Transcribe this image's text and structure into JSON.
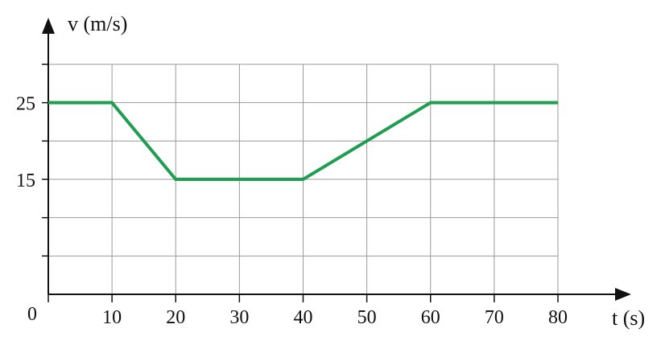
{
  "chart_data": {
    "type": "line",
    "title": "",
    "xlabel": "t (s)",
    "ylabel": "v (m/s)",
    "xlim": [
      0,
      80
    ],
    "ylim": [
      0,
      30
    ],
    "x_ticks": [
      10,
      20,
      30,
      40,
      50,
      60,
      70,
      80
    ],
    "y_ticks_labeled": [
      15,
      25
    ],
    "origin_label": "0",
    "grid": true,
    "x_grid_step": 10,
    "y_grid_step": 5,
    "series": [
      {
        "color": "#1f9e4f",
        "x": [
          0,
          10,
          20,
          40,
          60,
          80
        ],
        "y": [
          25,
          25,
          15,
          15,
          25,
          25
        ]
      }
    ]
  }
}
